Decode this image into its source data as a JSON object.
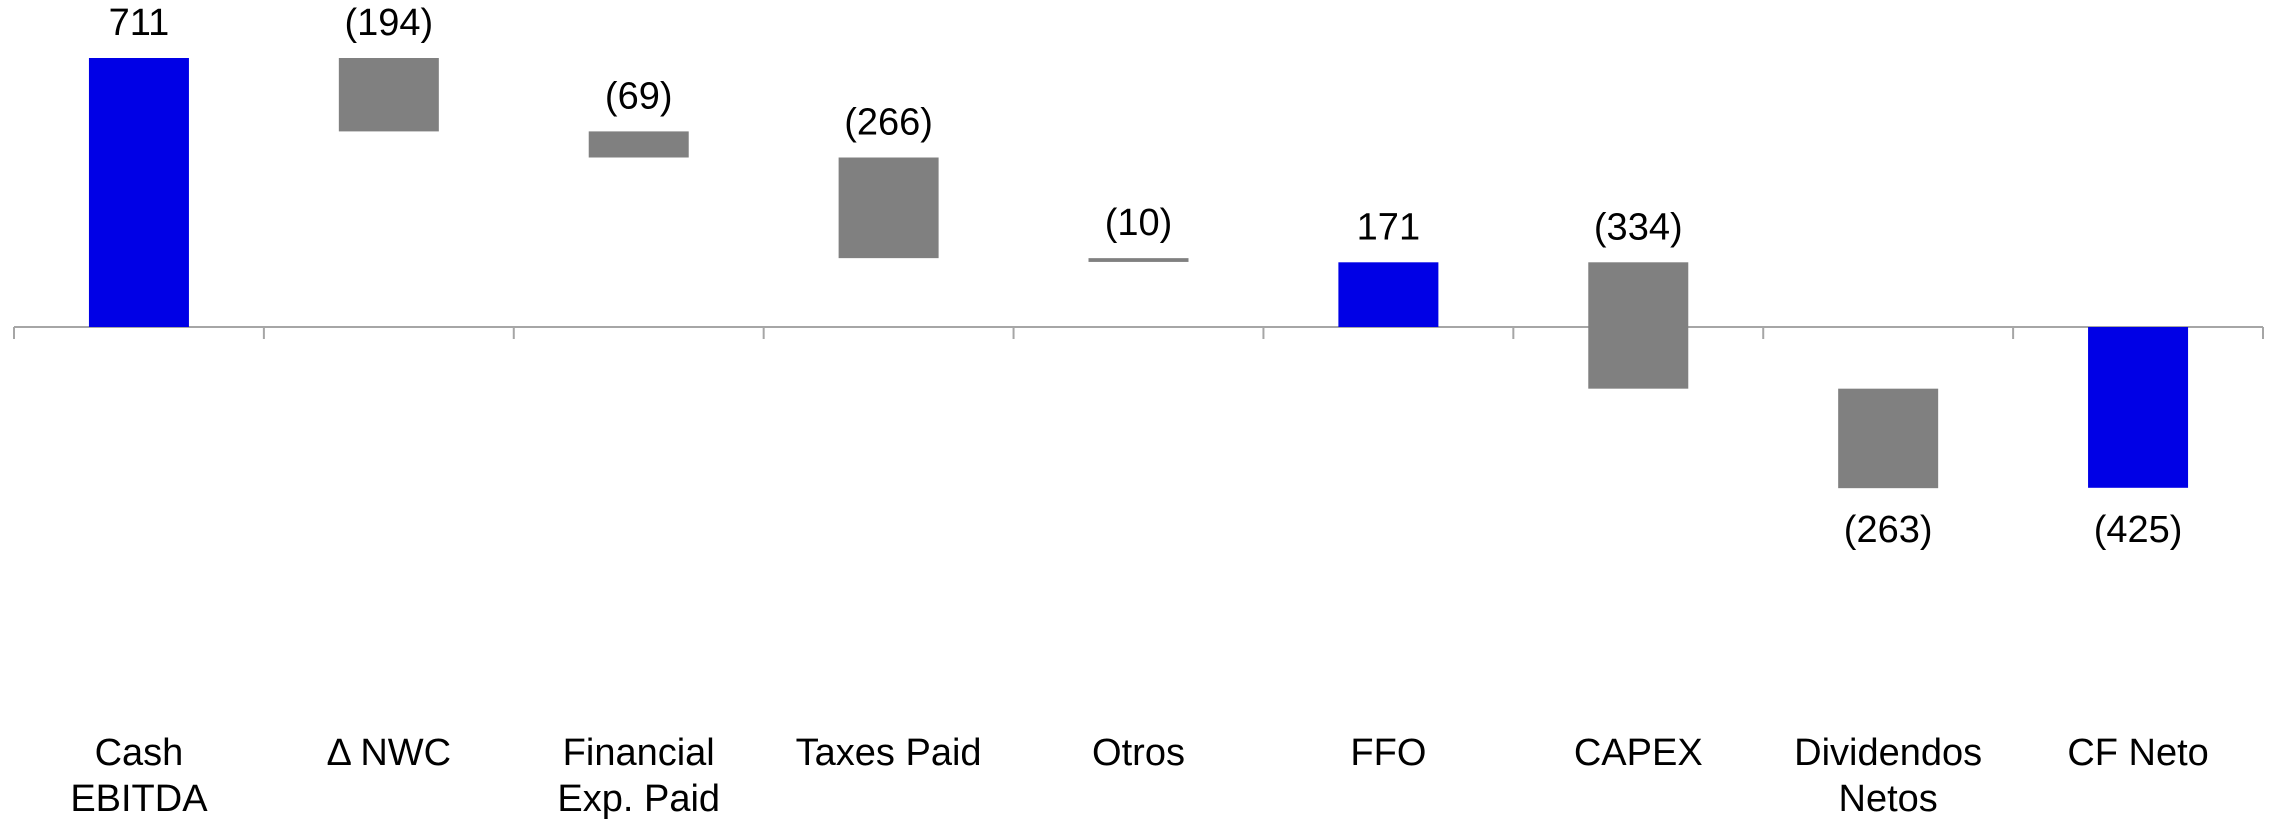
{
  "chart_data": {
    "type": "waterfall",
    "categories": [
      "Cash\nEBITDA",
      "Δ NWC",
      "Financial\nExp. Paid",
      "Taxes Paid",
      "Otros",
      "FFO",
      "CAPEX",
      "Dividendos\nNetos",
      "CF Neto"
    ],
    "values": [
      711,
      -194,
      -69,
      -266,
      -10,
      171,
      -334,
      -263,
      -425
    ],
    "value_labels": [
      "711",
      "(194)",
      "(69)",
      "(266)",
      "(10)",
      "171",
      "(334)",
      "(263)",
      "(425)"
    ],
    "totals": [
      true,
      false,
      false,
      false,
      false,
      true,
      false,
      false,
      true
    ],
    "total_color": "#0000e6",
    "color": "#808080"
  }
}
